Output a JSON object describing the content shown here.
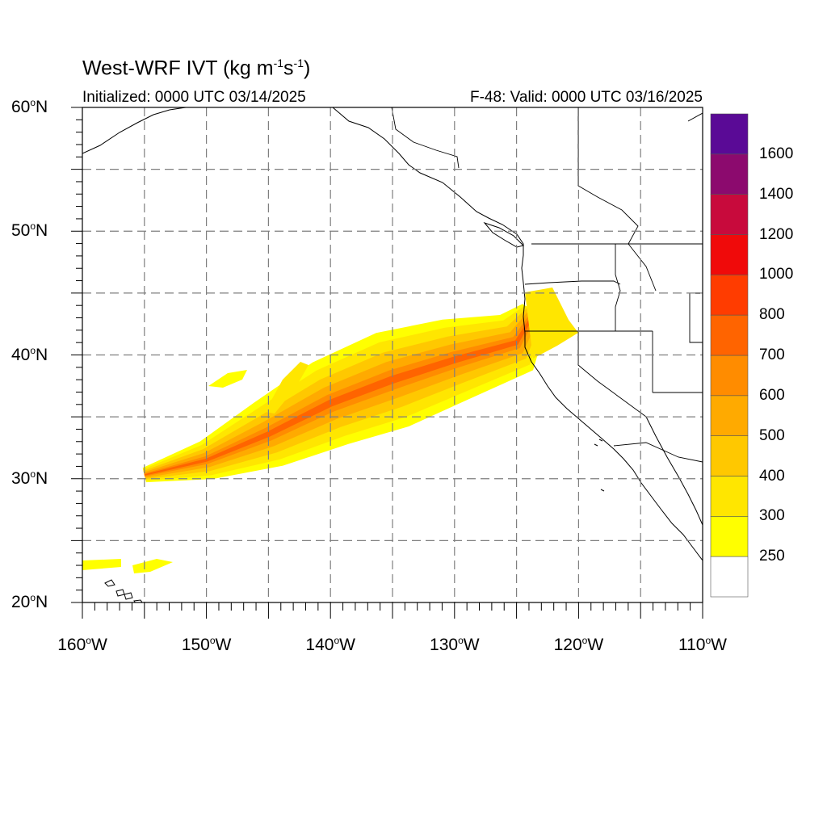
{
  "title": {
    "prefix": "West-WRF IVT (kg m",
    "sup1": "-1",
    "mid": "s",
    "sup2": "-1",
    "suffix": ")"
  },
  "subtitle_left": "Initialized: 0000 UTC 03/14/2025",
  "subtitle_right": "F-48: Valid: 0000 UTC 03/16/2025",
  "map": {
    "lon_range": [
      -160,
      -110
    ],
    "lat_range": [
      20,
      60
    ],
    "grid_lon_step": 5,
    "grid_lat_step": 5,
    "grid_style": "dashed",
    "lat_ticks": [
      {
        "value": 60,
        "label": "60",
        "suffix": "N"
      },
      {
        "value": 50,
        "label": "50",
        "suffix": "N"
      },
      {
        "value": 40,
        "label": "40",
        "suffix": "N"
      },
      {
        "value": 30,
        "label": "30",
        "suffix": "N"
      },
      {
        "value": 20,
        "label": "20",
        "suffix": "N"
      }
    ],
    "lon_ticks": [
      {
        "value": -160,
        "label": "160",
        "suffix": "W"
      },
      {
        "value": -150,
        "label": "150",
        "suffix": "W"
      },
      {
        "value": -140,
        "label": "140",
        "suffix": "W"
      },
      {
        "value": -130,
        "label": "130",
        "suffix": "W"
      },
      {
        "value": -120,
        "label": "120",
        "suffix": "W"
      },
      {
        "value": -110,
        "label": "110",
        "suffix": "W"
      }
    ]
  },
  "colorbar": {
    "levels": [
      {
        "label": "",
        "color": "#ffffff"
      },
      {
        "label": "250",
        "color": "#ffff00"
      },
      {
        "label": "300",
        "color": "#ffe600"
      },
      {
        "label": "400",
        "color": "#ffc800"
      },
      {
        "label": "500",
        "color": "#ffaa00"
      },
      {
        "label": "600",
        "color": "#ff8c00"
      },
      {
        "label": "700",
        "color": "#ff6400"
      },
      {
        "label": "800",
        "color": "#ff3c00"
      },
      {
        "label": "1000",
        "color": "#f00a0a"
      },
      {
        "label": "1200",
        "color": "#c80a3c"
      },
      {
        "label": "1400",
        "color": "#8c0a6e"
      },
      {
        "label": "1600",
        "color": "#5a0a96"
      }
    ]
  },
  "ivt_plume": {
    "band_lon_lat": [
      [
        -155,
        30.3
      ],
      [
        -150,
        31.5
      ],
      [
        -145,
        33.6
      ],
      [
        -140,
        36.1
      ],
      [
        -135,
        38.0
      ],
      [
        -130,
        39.6
      ],
      [
        -125,
        41.0
      ],
      [
        -123.5,
        43.5
      ]
    ],
    "widths_deg": [
      0.6,
      1.6,
      2.8,
      3.6,
      4.0,
      3.4,
      2.6,
      1.2
    ],
    "levels": [
      {
        "value": 250,
        "color": "#ffff00",
        "scale": 1.0
      },
      {
        "value": 300,
        "color": "#ffe600",
        "scale": 0.8
      },
      {
        "value": 400,
        "color": "#ffc800",
        "scale": 0.58
      },
      {
        "value": 500,
        "color": "#ffaa00",
        "scale": 0.38
      },
      {
        "value": 600,
        "color": "#ff8c00",
        "scale": 0.2
      },
      {
        "value": 700,
        "color": "#ff6400",
        "scale": 0.08
      }
    ]
  }
}
